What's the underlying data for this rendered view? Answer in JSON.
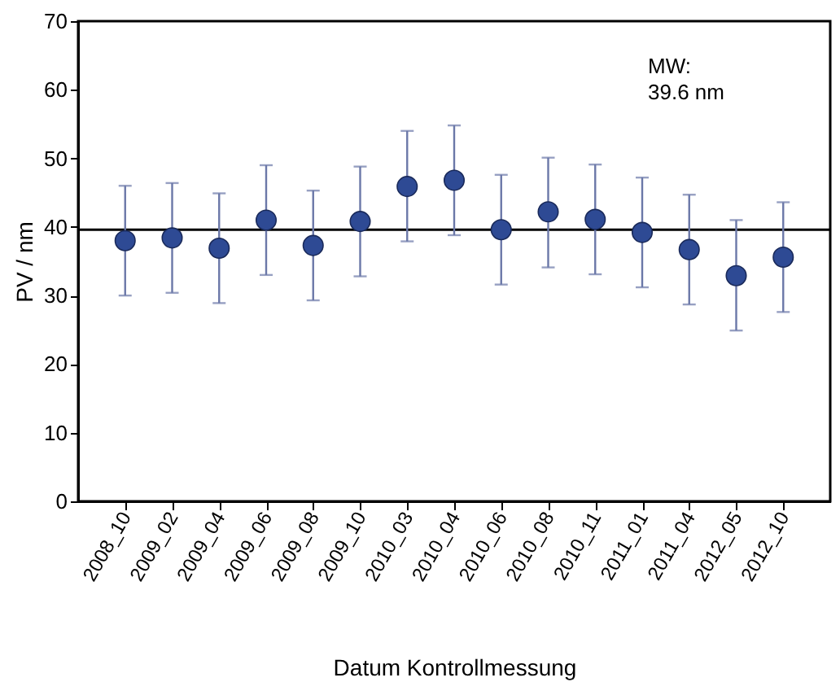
{
  "chart_data": {
    "type": "scatter",
    "xlabel": "Datum Kontrollmessung",
    "ylabel": "PV / nm",
    "categories": [
      "2008_10",
      "2009_02",
      "2009_04",
      "2009_06",
      "2009_08",
      "2009_10",
      "2010_03",
      "2010_04",
      "2010_06",
      "2010_08",
      "2010_11",
      "2011_01",
      "2011_04",
      "2012_05",
      "2012_10"
    ],
    "series": [
      {
        "color": "#2e4a94",
        "values": [
          38.0,
          38.4,
          36.9,
          41.0,
          37.3,
          40.8,
          45.9,
          46.8,
          39.6,
          42.2,
          41.1,
          39.2,
          36.7,
          32.9,
          35.6
        ],
        "errors": [
          [
            30,
            46
          ],
          [
            30.4,
            46.4
          ],
          [
            28.9,
            44.9
          ],
          [
            33,
            49
          ],
          [
            29.3,
            45.3
          ],
          [
            32.8,
            48.8
          ],
          [
            37.9,
            54
          ],
          [
            38.8,
            54.8
          ],
          [
            31.6,
            47.6
          ],
          [
            34.1,
            50.1
          ],
          [
            33.1,
            49.1
          ],
          [
            31.2,
            47.2
          ],
          [
            28.7,
            44.7
          ],
          [
            24.9,
            41
          ],
          [
            27.6,
            43.6
          ]
        ]
      }
    ],
    "ylim": [
      0,
      70
    ],
    "yticks": [
      0,
      10,
      20,
      30,
      40,
      50,
      60,
      70
    ],
    "ref_lines": [
      {
        "axis": "y",
        "value": 39.6,
        "color": "#000000"
      }
    ],
    "annotations": [
      "MW:\n39.6 nm"
    ],
    "marker": "circle",
    "grid": false
  }
}
